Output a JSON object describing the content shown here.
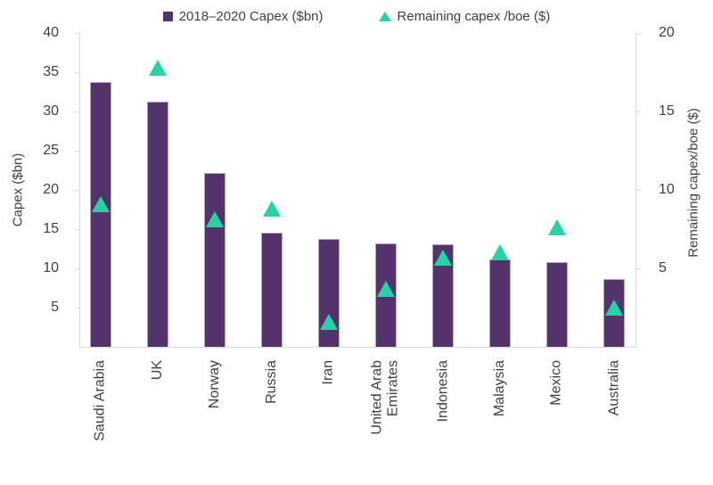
{
  "chart_data": {
    "type": "bar",
    "subtype": "combo-bar-and-scatter",
    "title": "",
    "categories": [
      "Saudi Arabia",
      "UK",
      "Norway",
      "Russia",
      "Iran",
      "United Arab\nEmirates",
      "Indonesia",
      "Malaysia",
      "Mexico",
      "Australia"
    ],
    "series": [
      {
        "name": "2018–2020 Capex ($bn)",
        "type": "bar",
        "axis": "left",
        "marker": "square",
        "color": "#54336B",
        "border_color": "#B7A6C6",
        "values": [
          33.7,
          31.3,
          22.2,
          14.5,
          13.8,
          13.2,
          13.1,
          11.1,
          10.8,
          8.6
        ]
      },
      {
        "name": "Remaining capex /boe ($)",
        "type": "scatter",
        "axis": "right",
        "marker": "triangle-up",
        "color": "#27D3A4",
        "values": [
          9.1,
          17.8,
          8.1,
          8.8,
          1.6,
          3.7,
          5.7,
          6.0,
          7.6,
          2.5
        ]
      }
    ],
    "left_axis": {
      "label": "Capex ($bn)",
      "min": 0,
      "max": 40,
      "tick_step": 5,
      "ticks": [
        5,
        10,
        15,
        20,
        25,
        30,
        35,
        40
      ]
    },
    "right_axis": {
      "label": "Remaining capex/boe ($)",
      "min": 0,
      "max": 20,
      "tick_step": 5,
      "ticks": [
        5,
        10,
        15,
        20
      ]
    },
    "legend_position": "top",
    "grid": false,
    "axis_line_color": "#D9D9D9",
    "text_color": "#404040"
  }
}
